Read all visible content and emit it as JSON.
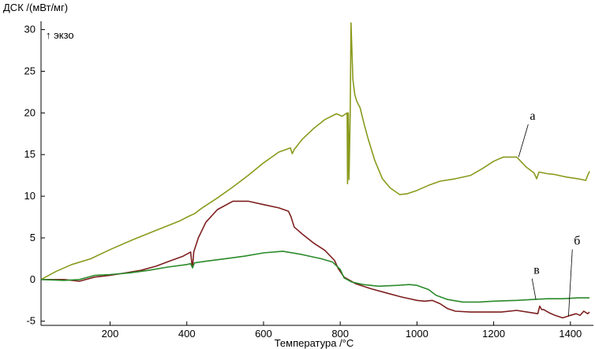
{
  "chart_data": {
    "type": "line",
    "ylabel": "ДСК /(мВт/мг)",
    "xlabel": "Температура /°C",
    "annotation": "↑ экзо",
    "xlim": [
      20,
      1460
    ],
    "ylim": [
      -5.5,
      31
    ],
    "x_ticks": [
      200,
      400,
      600,
      800,
      1000,
      1200,
      1400
    ],
    "y_ticks": [
      -5,
      0,
      5,
      10,
      15,
      20,
      25,
      30
    ],
    "grid": false,
    "series": [
      {
        "name": "а",
        "color": "#8a9a1c",
        "points": [
          [
            20,
            0
          ],
          [
            60,
            1
          ],
          [
            100,
            1.8
          ],
          [
            150,
            2.5
          ],
          [
            200,
            3.6
          ],
          [
            260,
            4.8
          ],
          [
            320,
            5.9
          ],
          [
            380,
            7
          ],
          [
            405,
            7.6
          ],
          [
            420,
            7.9
          ],
          [
            440,
            8.6
          ],
          [
            480,
            9.8
          ],
          [
            520,
            11.1
          ],
          [
            560,
            12.5
          ],
          [
            600,
            14
          ],
          [
            640,
            15.3
          ],
          [
            670,
            15.8
          ],
          [
            675,
            15.1
          ],
          [
            680,
            15.6
          ],
          [
            700,
            16.8
          ],
          [
            730,
            18.1
          ],
          [
            760,
            19.2
          ],
          [
            790,
            19.9
          ],
          [
            805,
            19.6
          ],
          [
            818,
            20
          ],
          [
            819,
            11.5
          ],
          [
            821,
            20
          ],
          [
            823,
            12
          ],
          [
            826,
            20
          ],
          [
            828,
            30.8
          ],
          [
            833,
            24
          ],
          [
            838,
            22.2
          ],
          [
            843,
            21.4
          ],
          [
            852,
            20.6
          ],
          [
            862,
            18.7
          ],
          [
            872,
            17
          ],
          [
            890,
            14.3
          ],
          [
            910,
            12.1
          ],
          [
            930,
            11
          ],
          [
            955,
            10.2
          ],
          [
            975,
            10.3
          ],
          [
            1000,
            10.7
          ],
          [
            1030,
            11.3
          ],
          [
            1060,
            11.8
          ],
          [
            1100,
            12.1
          ],
          [
            1140,
            12.5
          ],
          [
            1170,
            13.3
          ],
          [
            1200,
            14.2
          ],
          [
            1225,
            14.7
          ],
          [
            1260,
            14.7
          ],
          [
            1285,
            13.5
          ],
          [
            1305,
            12.8
          ],
          [
            1312,
            12.1
          ],
          [
            1318,
            12.9
          ],
          [
            1340,
            12.7
          ],
          [
            1360,
            12.6
          ],
          [
            1390,
            12.3
          ],
          [
            1420,
            12.1
          ],
          [
            1440,
            11.9
          ],
          [
            1445,
            12.5
          ],
          [
            1450,
            13
          ]
        ]
      },
      {
        "name": "б",
        "color": "#7e1f1f",
        "points": [
          [
            20,
            0
          ],
          [
            80,
            0
          ],
          [
            120,
            -0.2
          ],
          [
            160,
            0.3
          ],
          [
            200,
            0.5
          ],
          [
            240,
            0.8
          ],
          [
            280,
            1.1
          ],
          [
            320,
            1.6
          ],
          [
            360,
            2.3
          ],
          [
            390,
            2.8
          ],
          [
            410,
            3.3
          ],
          [
            413,
            2
          ],
          [
            415,
            1.5
          ],
          [
            418,
            3.3
          ],
          [
            430,
            5
          ],
          [
            450,
            6.9
          ],
          [
            480,
            8.4
          ],
          [
            520,
            9.4
          ],
          [
            560,
            9.4
          ],
          [
            600,
            9
          ],
          [
            640,
            8.6
          ],
          [
            665,
            8.2
          ],
          [
            672,
            7.5
          ],
          [
            680,
            6.3
          ],
          [
            700,
            5.5
          ],
          [
            730,
            4.4
          ],
          [
            760,
            3.5
          ],
          [
            785,
            2.3
          ],
          [
            795,
            1.3
          ],
          [
            810,
            0.3
          ],
          [
            840,
            -0.5
          ],
          [
            880,
            -1.1
          ],
          [
            920,
            -1.6
          ],
          [
            960,
            -2.1
          ],
          [
            1000,
            -2.5
          ],
          [
            1020,
            -2.6
          ],
          [
            1040,
            -2.5
          ],
          [
            1060,
            -2.9
          ],
          [
            1080,
            -3.5
          ],
          [
            1100,
            -3.8
          ],
          [
            1140,
            -3.9
          ],
          [
            1180,
            -3.9
          ],
          [
            1220,
            -3.9
          ],
          [
            1260,
            -3.7
          ],
          [
            1300,
            -4
          ],
          [
            1315,
            -4.1
          ],
          [
            1320,
            -3.2
          ],
          [
            1325,
            -3.6
          ],
          [
            1330,
            -3.6
          ],
          [
            1345,
            -4
          ],
          [
            1360,
            -4.3
          ],
          [
            1380,
            -4.6
          ],
          [
            1400,
            -4.3
          ],
          [
            1415,
            -4.1
          ],
          [
            1425,
            -4.3
          ],
          [
            1435,
            -3.8
          ],
          [
            1445,
            -4.1
          ],
          [
            1450,
            -3.9
          ]
        ]
      },
      {
        "name": "в",
        "color": "#2a8a2a",
        "points": [
          [
            20,
            0
          ],
          [
            80,
            -0.1
          ],
          [
            120,
            0
          ],
          [
            160,
            0.5
          ],
          [
            200,
            0.6
          ],
          [
            250,
            0.8
          ],
          [
            300,
            1.1
          ],
          [
            350,
            1.5
          ],
          [
            400,
            1.8
          ],
          [
            410,
            1.9
          ],
          [
            415,
            1.4
          ],
          [
            420,
            2
          ],
          [
            450,
            2.2
          ],
          [
            500,
            2.5
          ],
          [
            550,
            2.8
          ],
          [
            600,
            3.2
          ],
          [
            650,
            3.4
          ],
          [
            700,
            3
          ],
          [
            750,
            2.5
          ],
          [
            780,
            2.1
          ],
          [
            800,
            1.2
          ],
          [
            810,
            0.2
          ],
          [
            830,
            -0.3
          ],
          [
            860,
            -0.6
          ],
          [
            900,
            -0.8
          ],
          [
            950,
            -0.7
          ],
          [
            980,
            -0.6
          ],
          [
            1000,
            -0.7
          ],
          [
            1030,
            -1.2
          ],
          [
            1050,
            -1.9
          ],
          [
            1080,
            -2.4
          ],
          [
            1120,
            -2.7
          ],
          [
            1160,
            -2.7
          ],
          [
            1200,
            -2.6
          ],
          [
            1260,
            -2.5
          ],
          [
            1300,
            -2.4
          ],
          [
            1340,
            -2.3
          ],
          [
            1380,
            -2.3
          ],
          [
            1420,
            -2.2
          ],
          [
            1450,
            -2.2
          ]
        ]
      }
    ],
    "curve_labels": [
      {
        "text": "а",
        "at": [
          1265,
          14.7
        ],
        "label_pos": [
          1290,
          19
        ]
      },
      {
        "text": "в",
        "at": [
          1310,
          -2.4
        ],
        "label_pos": [
          1300,
          0.5
        ]
      },
      {
        "text": "б",
        "at": [
          1395,
          -4.4
        ],
        "label_pos": [
          1405,
          4
        ]
      }
    ]
  }
}
